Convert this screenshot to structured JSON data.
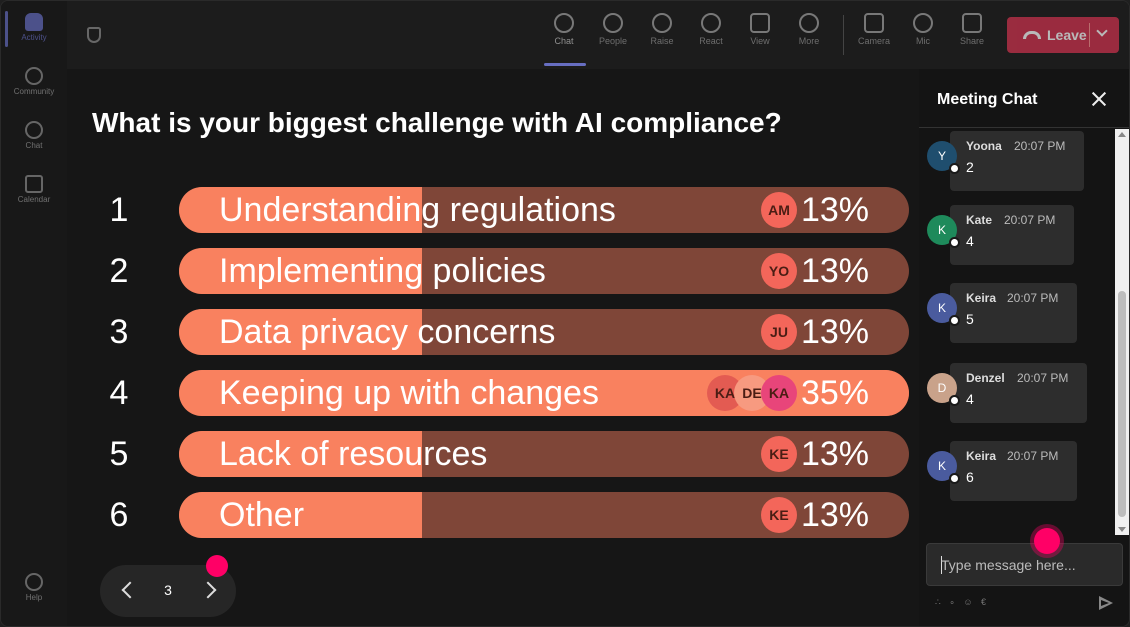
{
  "rail": {
    "items": [
      {
        "label": "Activity"
      },
      {
        "label": "Community"
      },
      {
        "label": "Chat"
      },
      {
        "label": "Calendar"
      }
    ],
    "help_label": "Help"
  },
  "toolbar": {
    "tools": [
      {
        "label": "Chat",
        "icon": "chat-icon"
      },
      {
        "label": "People",
        "icon": "people-icon"
      },
      {
        "label": "Raise",
        "icon": "raise-hand-icon"
      },
      {
        "label": "React",
        "icon": "react-icon"
      },
      {
        "label": "View",
        "icon": "view-icon"
      },
      {
        "label": "More",
        "icon": "more-icon"
      },
      {
        "label": "Camera",
        "icon": "camera-icon"
      },
      {
        "label": "Mic",
        "icon": "mic-icon"
      },
      {
        "label": "Share",
        "icon": "share-icon"
      }
    ],
    "leave_label": "Leave",
    "leave_color": "#c4314b"
  },
  "poll": {
    "question": "What is your biggest challenge with AI compliance?",
    "bar_color": "#f9815f",
    "track_color": "#7f4638",
    "options": [
      {
        "num": "1",
        "label": "Understanding regulations",
        "percent": "13%",
        "value": 13,
        "avatars": [
          "AM"
        ]
      },
      {
        "num": "2",
        "label": "Implementing policies",
        "percent": "13%",
        "value": 13,
        "avatars": [
          "YO"
        ]
      },
      {
        "num": "3",
        "label": "Data privacy concerns",
        "percent": "13%",
        "value": 13,
        "avatars": [
          "JU"
        ]
      },
      {
        "num": "4",
        "label": "Keeping up with changes",
        "percent": "35%",
        "value": 35,
        "avatars": [
          "KA",
          "DE",
          "KA"
        ]
      },
      {
        "num": "5",
        "label": "Lack of resources",
        "percent": "13%",
        "value": 13,
        "avatars": [
          "KE"
        ]
      },
      {
        "num": "6",
        "label": "Other",
        "percent": "13%",
        "value": 13,
        "avatars": [
          "KE"
        ]
      }
    ]
  },
  "pager": {
    "page": "3"
  },
  "chat": {
    "title": "Meeting Chat",
    "messages": [
      {
        "initial": "Y",
        "name": "Yoona",
        "time": "20:07 PM",
        "text": "2",
        "color": "#1f4e6e"
      },
      {
        "initial": "K",
        "name": "Kate",
        "time": "20:07 PM",
        "text": "4",
        "color": "#1e8a5b"
      },
      {
        "initial": "K",
        "name": "Keira",
        "time": "20:07 PM",
        "text": "5",
        "color": "#4a5b9e"
      },
      {
        "initial": "D",
        "name": "Denzel",
        "time": "20:07 PM",
        "text": "4",
        "color": "#c9a28a"
      },
      {
        "initial": "K",
        "name": "Keira",
        "time": "20:07 PM",
        "text": "6",
        "color": "#4a5b9e"
      }
    ],
    "compose_placeholder": "Type message here...",
    "format_icons": "∴ ∘ ☺ €"
  }
}
